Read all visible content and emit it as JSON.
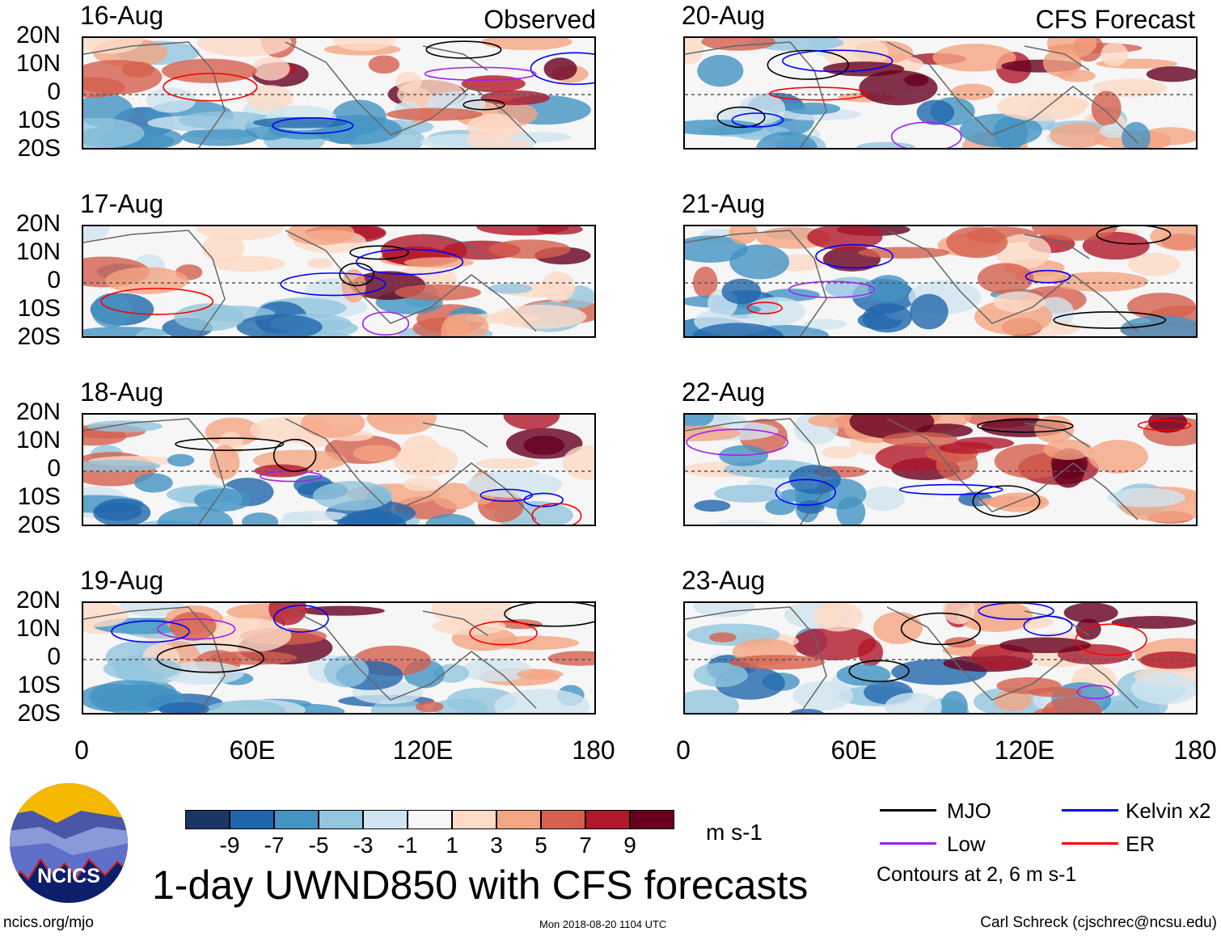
{
  "title": "1-day UWND850 with CFS forecasts",
  "observed_label": "Observed",
  "forecast_label": "CFS Forecast",
  "panels": {
    "observed": [
      {
        "date": "16-Aug"
      },
      {
        "date": "17-Aug"
      },
      {
        "date": "18-Aug"
      },
      {
        "date": "19-Aug"
      }
    ],
    "forecast": [
      {
        "date": "20-Aug"
      },
      {
        "date": "21-Aug"
      },
      {
        "date": "22-Aug"
      },
      {
        "date": "23-Aug"
      }
    ]
  },
  "lat_labels": [
    "20N",
    "10N",
    "0",
    "10S",
    "20S"
  ],
  "lon_labels": [
    "0",
    "60E",
    "120E",
    "180"
  ],
  "colorbar": {
    "colors": [
      "#1b3564",
      "#2166ac",
      "#4393c3",
      "#92c5de",
      "#d1e5f0",
      "#f7f7f7",
      "#fddbc7",
      "#f4a582",
      "#d6604d",
      "#b2182b",
      "#67001f"
    ],
    "ticks": [
      "-9",
      "-7",
      "-5",
      "-3",
      "-1",
      "1",
      "3",
      "5",
      "7",
      "9"
    ],
    "units": "m s-1"
  },
  "legend": {
    "items": [
      {
        "label": "MJO",
        "color": "#000000"
      },
      {
        "label": "Kelvin x2",
        "color": "#0000ff"
      },
      {
        "label": "Low",
        "color": "#a020f0"
      },
      {
        "label": "ER",
        "color": "#ff0000"
      }
    ],
    "note": "Contours at 2, 6 m s-1"
  },
  "logo_text": "NCICS",
  "footer": {
    "left": "ncics.org/mjo",
    "center": "Mon 2018-08-20 1104 UTC",
    "right": "Carl Schreck (cjschrec@ncsu.edu)"
  }
}
